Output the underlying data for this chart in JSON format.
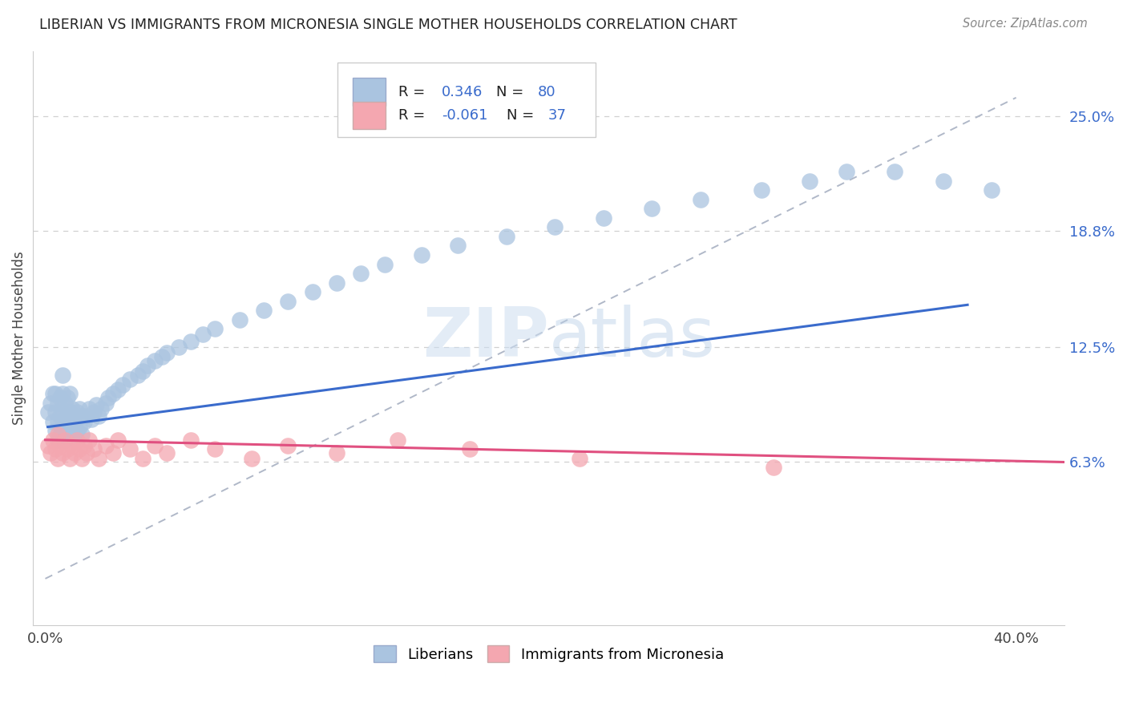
{
  "title": "LIBERIAN VS IMMIGRANTS FROM MICRONESIA SINGLE MOTHER HOUSEHOLDS CORRELATION CHART",
  "source": "Source: ZipAtlas.com",
  "ylabel": "Single Mother Households",
  "xlim": [
    -0.005,
    0.42
  ],
  "ylim": [
    -0.025,
    0.285
  ],
  "x_ticks": [
    0.0,
    0.4
  ],
  "x_tick_labels": [
    "0.0%",
    "40.0%"
  ],
  "y_tick_labels_right": [
    "25.0%",
    "18.8%",
    "12.5%",
    "6.3%"
  ],
  "y_tick_values_right": [
    0.25,
    0.188,
    0.125,
    0.063
  ],
  "grid_color": "#d0d0d0",
  "background_color": "#ffffff",
  "liberian_color": "#aac4e0",
  "micronesia_color": "#f4a7b0",
  "liberian_line_color": "#3a6bcc",
  "micronesia_line_color": "#e05080",
  "ref_line_color": "#b0b8c8",
  "legend_blue_face": "#aac4e0",
  "legend_pink_face": "#f4a7b0",
  "watermark_zip": "ZIP",
  "watermark_atlas": "atlas",
  "liberian_x": [
    0.001,
    0.002,
    0.003,
    0.003,
    0.004,
    0.004,
    0.004,
    0.005,
    0.005,
    0.005,
    0.006,
    0.006,
    0.006,
    0.007,
    0.007,
    0.007,
    0.007,
    0.008,
    0.008,
    0.008,
    0.009,
    0.009,
    0.009,
    0.01,
    0.01,
    0.01,
    0.011,
    0.011,
    0.012,
    0.012,
    0.013,
    0.013,
    0.014,
    0.014,
    0.015,
    0.015,
    0.016,
    0.017,
    0.018,
    0.019,
    0.02,
    0.021,
    0.022,
    0.023,
    0.025,
    0.026,
    0.028,
    0.03,
    0.032,
    0.035,
    0.038,
    0.04,
    0.042,
    0.045,
    0.048,
    0.05,
    0.055,
    0.06,
    0.065,
    0.07,
    0.08,
    0.09,
    0.1,
    0.11,
    0.12,
    0.13,
    0.14,
    0.155,
    0.17,
    0.19,
    0.21,
    0.23,
    0.25,
    0.27,
    0.295,
    0.315,
    0.33,
    0.35,
    0.37,
    0.39
  ],
  "liberian_y": [
    0.09,
    0.095,
    0.085,
    0.1,
    0.08,
    0.09,
    0.1,
    0.075,
    0.085,
    0.095,
    0.078,
    0.088,
    0.098,
    0.08,
    0.09,
    0.1,
    0.11,
    0.075,
    0.085,
    0.095,
    0.078,
    0.088,
    0.098,
    0.08,
    0.09,
    0.1,
    0.082,
    0.092,
    0.078,
    0.088,
    0.08,
    0.09,
    0.082,
    0.092,
    0.078,
    0.088,
    0.085,
    0.088,
    0.092,
    0.086,
    0.09,
    0.094,
    0.088,
    0.092,
    0.095,
    0.098,
    0.1,
    0.102,
    0.105,
    0.108,
    0.11,
    0.112,
    0.115,
    0.118,
    0.12,
    0.122,
    0.125,
    0.128,
    0.132,
    0.135,
    0.14,
    0.145,
    0.15,
    0.155,
    0.16,
    0.165,
    0.17,
    0.175,
    0.18,
    0.185,
    0.19,
    0.195,
    0.2,
    0.205,
    0.21,
    0.215,
    0.22,
    0.22,
    0.215,
    0.21
  ],
  "micronesia_x": [
    0.001,
    0.002,
    0.003,
    0.004,
    0.005,
    0.005,
    0.006,
    0.007,
    0.008,
    0.009,
    0.01,
    0.011,
    0.012,
    0.013,
    0.014,
    0.015,
    0.016,
    0.017,
    0.018,
    0.02,
    0.022,
    0.025,
    0.028,
    0.03,
    0.035,
    0.04,
    0.045,
    0.05,
    0.06,
    0.07,
    0.085,
    0.1,
    0.12,
    0.145,
    0.175,
    0.22,
    0.3
  ],
  "micronesia_y": [
    0.072,
    0.068,
    0.075,
    0.07,
    0.065,
    0.078,
    0.072,
    0.068,
    0.075,
    0.07,
    0.065,
    0.072,
    0.068,
    0.075,
    0.07,
    0.065,
    0.072,
    0.068,
    0.075,
    0.07,
    0.065,
    0.072,
    0.068,
    0.075,
    0.07,
    0.065,
    0.072,
    0.068,
    0.075,
    0.07,
    0.065,
    0.072,
    0.068,
    0.075,
    0.07,
    0.065,
    0.06
  ],
  "lib_line_x": [
    0.001,
    0.38
  ],
  "lib_line_y": [
    0.082,
    0.148
  ],
  "mic_line_x": [
    0.0,
    0.42
  ],
  "mic_line_y": [
    0.075,
    0.063
  ],
  "ref_line_x": [
    0.0,
    0.4
  ],
  "ref_line_y": [
    0.0,
    0.26
  ]
}
